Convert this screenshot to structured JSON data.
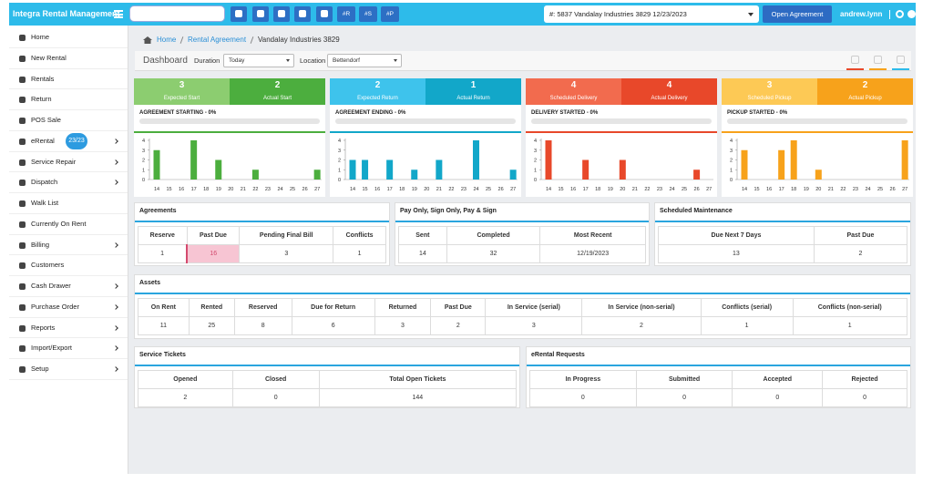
{
  "topbar": {
    "title": "Integra Rental Management",
    "quick_buttons": [
      "#R",
      "#S",
      "#P"
    ],
    "agreement_select": "#: 5837 Vandalay Industries 3829 12/23/2023",
    "open_button": "Open Agreement",
    "user": "andrew.lynn"
  },
  "sidebar": {
    "items": [
      {
        "label": "Home"
      },
      {
        "label": "New Rental"
      },
      {
        "label": "Rentals"
      },
      {
        "label": "Return"
      },
      {
        "label": "POS Sale"
      },
      {
        "label": "eRental",
        "badge": "23/23",
        "arrow": true
      },
      {
        "label": "Service Repair",
        "arrow": true
      },
      {
        "label": "Dispatch",
        "arrow": true
      },
      {
        "label": "Walk List"
      },
      {
        "label": "Currently On Rent"
      },
      {
        "label": "Billing",
        "arrow": true
      },
      {
        "label": "Customers"
      },
      {
        "label": "Cash Drawer",
        "arrow": true
      },
      {
        "label": "Purchase Order",
        "arrow": true
      },
      {
        "label": "Reports",
        "arrow": true
      },
      {
        "label": "Import/Export",
        "arrow": true
      },
      {
        "label": "Setup",
        "arrow": true
      }
    ]
  },
  "breadcrumb": [
    "Home",
    "Rental Agreement",
    "Vandalay Industries 3829"
  ],
  "filters": {
    "title": "Dashboard",
    "duration_label": "Duration",
    "duration": "Today",
    "location_label": "Location",
    "location": "Bettendorf"
  },
  "widgets": [
    {
      "tiles": [
        {
          "value": 3,
          "label": "Expected Start",
          "color": "#8ccd70"
        },
        {
          "value": 2,
          "label": "Actual Start",
          "color": "#4cae3e"
        }
      ],
      "status": "AGREEMENT STARTING - 0%",
      "color": "#4cae3e",
      "chart": {
        "type": "bar",
        "categories": [
          "14",
          "15",
          "16",
          "17",
          "18",
          "19",
          "20",
          "21",
          "22",
          "23",
          "24",
          "25",
          "26",
          "27"
        ],
        "values": [
          3,
          0,
          0,
          4,
          0,
          2,
          0,
          0,
          1,
          0,
          0,
          0,
          0,
          1
        ],
        "ylim": [
          0,
          4
        ],
        "yticks": [
          0,
          1,
          2,
          3,
          4
        ]
      }
    },
    {
      "tiles": [
        {
          "value": 2,
          "label": "Expected Return",
          "color": "#3ec3ec"
        },
        {
          "value": 1,
          "label": "Actual Return",
          "color": "#12a7c9"
        }
      ],
      "status": "AGREEMENT ENDING - 0%",
      "color": "#12a7c9",
      "chart": {
        "type": "bar",
        "categories": [
          "14",
          "15",
          "16",
          "17",
          "18",
          "19",
          "20",
          "21",
          "22",
          "23",
          "24",
          "25",
          "26",
          "27"
        ],
        "values": [
          2,
          2,
          0,
          2,
          0,
          1,
          0,
          2,
          0,
          0,
          4,
          0,
          0,
          1
        ],
        "ylim": [
          0,
          4
        ],
        "yticks": [
          0,
          1,
          2,
          3,
          4
        ]
      }
    },
    {
      "tiles": [
        {
          "value": 4,
          "label": "Scheduled Delivery",
          "color": "#f26b4e"
        },
        {
          "value": 4,
          "label": "Actual Delivery",
          "color": "#e8482a"
        }
      ],
      "status": "DELIVERY STARTED - 0%",
      "color": "#e8482a",
      "chart": {
        "type": "bar",
        "categories": [
          "14",
          "15",
          "16",
          "17",
          "18",
          "19",
          "20",
          "21",
          "22",
          "23",
          "24",
          "25",
          "26",
          "27"
        ],
        "values": [
          4,
          0,
          0,
          2,
          0,
          0,
          2,
          0,
          0,
          0,
          0,
          0,
          1,
          0
        ],
        "ylim": [
          0,
          4
        ],
        "yticks": [
          0,
          1,
          2,
          3,
          4
        ]
      }
    },
    {
      "tiles": [
        {
          "value": 3,
          "label": "Scheduled Pickup",
          "color": "#fdc955"
        },
        {
          "value": 2,
          "label": "Actual Pickup",
          "color": "#f7a21b"
        }
      ],
      "status": "PICKUP STARTED - 0%",
      "color": "#f7a21b",
      "chart": {
        "type": "bar",
        "categories": [
          "14",
          "15",
          "16",
          "17",
          "18",
          "19",
          "20",
          "21",
          "22",
          "23",
          "24",
          "25",
          "26",
          "27"
        ],
        "values": [
          3,
          0,
          0,
          3,
          4,
          0,
          1,
          0,
          0,
          0,
          0,
          0,
          0,
          4
        ],
        "ylim": [
          0,
          4
        ],
        "yticks": [
          0,
          1,
          2,
          3,
          4
        ]
      }
    }
  ],
  "cards": [
    {
      "title": "Agreements",
      "headers": [
        "Reserve",
        "Past Due",
        "Pending Final Bill",
        "Conflicts"
      ],
      "values": [
        1,
        16,
        3,
        1
      ],
      "highlight_column": 1
    },
    {
      "title": "Pay Only, Sign Only, Pay & Sign",
      "headers": [
        "Sent",
        "Completed",
        "Most Recent"
      ],
      "values": [
        14,
        32,
        "12/19/2023"
      ]
    },
    {
      "title": "Scheduled Maintenance",
      "headers": [
        "Due Next 7 Days",
        "Past Due"
      ],
      "values": [
        13,
        2
      ]
    },
    {
      "title": "Assets",
      "headers": [
        "On Rent",
        "Rented",
        "Reserved",
        "Due for Return",
        "Returned",
        "Past Due",
        "In Service (serial)",
        "In Service (non-serial)",
        "Conflicts (serial)",
        "Conflicts (non-serial)"
      ],
      "values": [
        11,
        25,
        8,
        6,
        3,
        2,
        3,
        2,
        1,
        1
      ]
    },
    {
      "title": "Service Tickets",
      "headers": [
        "Opened",
        "Closed",
        "Total Open Tickets"
      ],
      "values": [
        2,
        0,
        144
      ]
    },
    {
      "title": "eRental Requests",
      "headers": [
        "In Progress",
        "Submitted",
        "Accepted",
        "Rejected"
      ],
      "values": [
        0,
        0,
        0,
        0
      ]
    }
  ]
}
